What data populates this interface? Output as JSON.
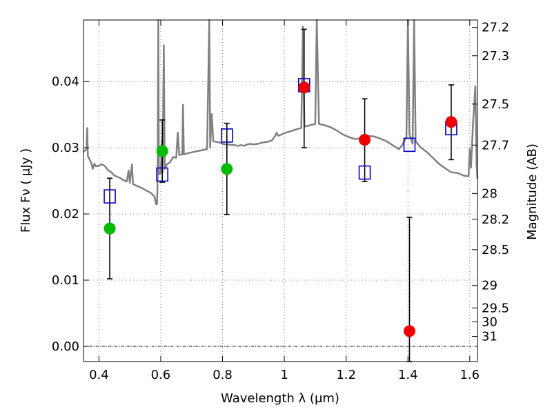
{
  "chart_data": {
    "type": "scatter",
    "title": "",
    "xlabel": "Wavelength  λ (μm)",
    "ylabel": "Flux  Fν  ( μJy )",
    "ylabel_right": "Magnitude (AB)",
    "xlim": [
      0.35,
      1.625
    ],
    "ylim": [
      -0.0023,
      0.0493
    ],
    "x_ticks": [
      0.4,
      0.6,
      0.8,
      1.0,
      1.2,
      1.4,
      1.6
    ],
    "x_tick_labels": [
      "0.4",
      "0.6",
      "0.8",
      "1",
      "1.2",
      "1.4",
      "1.6"
    ],
    "y_ticks": [
      0.0,
      0.01,
      0.02,
      0.03,
      0.04
    ],
    "y_tick_labels": [
      "0.00",
      "0.01",
      "0.02",
      "0.03",
      "0.04"
    ],
    "right_ticks": [
      {
        "label": "27.2",
        "flux": 0.0482
      },
      {
        "label": "27.3",
        "flux": 0.0439
      },
      {
        "label": "27.5",
        "flux": 0.0366
      },
      {
        "label": "27.7",
        "flux": 0.0304
      },
      {
        "label": "28",
        "flux": 0.0231
      },
      {
        "label": "28.2",
        "flux": 0.0192
      },
      {
        "label": "28.5",
        "flux": 0.0146
      },
      {
        "label": "29",
        "flux": 0.0092
      },
      {
        "label": "29.5",
        "flux": 0.0058
      },
      {
        "label": "30",
        "flux": 0.0037
      },
      {
        "label": "31",
        "flux": 0.0015
      }
    ],
    "grid": true,
    "zero_line": true,
    "colors": {
      "model_line": "#808080",
      "model_points": "#0000cc",
      "green_points": "#00bb00",
      "red_points": "#ee0000",
      "errorbar": "#000000",
      "grid": "#808080"
    },
    "series": [
      {
        "marker": "open-square",
        "points": [
          {
            "x": 0.435,
            "y": 0.0226
          },
          {
            "x": 0.605,
            "y": 0.0259
          },
          {
            "x": 0.814,
            "y": 0.0318
          },
          {
            "x": 1.064,
            "y": 0.0394
          },
          {
            "x": 1.26,
            "y": 0.0262
          },
          {
            "x": 1.405,
            "y": 0.0304
          },
          {
            "x": 1.54,
            "y": 0.0329
          }
        ]
      },
      {
        "marker": "filled-circle",
        "color": "green",
        "points": [
          {
            "x": 0.435,
            "y": 0.0178,
            "err_low": 0.0102,
            "err_high": 0.0254
          },
          {
            "x": 0.605,
            "y": 0.0295,
            "err_low": 0.0248,
            "err_high": 0.0342
          },
          {
            "x": 0.814,
            "y": 0.0268,
            "err_low": 0.0199,
            "err_high": 0.0337
          }
        ]
      },
      {
        "marker": "filled-circle",
        "color": "red",
        "points": [
          {
            "x": 1.064,
            "y": 0.0391,
            "err_low": 0.03,
            "err_high": 0.0479
          },
          {
            "x": 1.26,
            "y": 0.0312,
            "err_low": 0.0249,
            "err_high": 0.0374
          },
          {
            "x": 1.405,
            "y": 0.0023,
            "err_low": -0.0023,
            "err_high": 0.0195
          },
          {
            "x": 1.54,
            "y": 0.0339,
            "err_low": 0.0282,
            "err_high": 0.0395
          }
        ]
      },
      {
        "marker": "line",
        "points": [
          {
            "x": 0.35,
            "y": 0.0294
          },
          {
            "x": 0.36,
            "y": 0.0298
          },
          {
            "x": 0.362,
            "y": 0.033
          },
          {
            "x": 0.364,
            "y": 0.0288
          },
          {
            "x": 0.375,
            "y": 0.0277
          },
          {
            "x": 0.38,
            "y": 0.0268
          },
          {
            "x": 0.385,
            "y": 0.0276
          },
          {
            "x": 0.39,
            "y": 0.0272
          },
          {
            "x": 0.4,
            "y": 0.0273
          },
          {
            "x": 0.41,
            "y": 0.0275
          },
          {
            "x": 0.42,
            "y": 0.0272
          },
          {
            "x": 0.43,
            "y": 0.0266
          },
          {
            "x": 0.44,
            "y": 0.0263
          },
          {
            "x": 0.45,
            "y": 0.0258
          },
          {
            "x": 0.46,
            "y": 0.0256
          },
          {
            "x": 0.47,
            "y": 0.0254
          },
          {
            "x": 0.48,
            "y": 0.0251
          },
          {
            "x": 0.49,
            "y": 0.0249
          },
          {
            "x": 0.496,
            "y": 0.0266
          },
          {
            "x": 0.5,
            "y": 0.0247
          },
          {
            "x": 0.507,
            "y": 0.0275
          },
          {
            "x": 0.51,
            "y": 0.0245
          },
          {
            "x": 0.52,
            "y": 0.0243
          },
          {
            "x": 0.53,
            "y": 0.0241
          },
          {
            "x": 0.54,
            "y": 0.0239
          },
          {
            "x": 0.55,
            "y": 0.0236
          },
          {
            "x": 0.56,
            "y": 0.0234
          },
          {
            "x": 0.57,
            "y": 0.0231
          },
          {
            "x": 0.58,
            "y": 0.0226
          },
          {
            "x": 0.585,
            "y": 0.0215
          },
          {
            "x": 0.588,
            "y": 0.0215
          },
          {
            "x": 0.59,
            "y": 0.0255
          },
          {
            "x": 0.592,
            "y": 0.0493
          },
          {
            "x": 0.594,
            "y": 0.026
          },
          {
            "x": 0.6,
            "y": 0.0262
          },
          {
            "x": 0.604,
            "y": 0.0312
          },
          {
            "x": 0.606,
            "y": 0.0262
          },
          {
            "x": 0.61,
            "y": 0.0455
          },
          {
            "x": 0.613,
            "y": 0.0268
          },
          {
            "x": 0.62,
            "y": 0.0275
          },
          {
            "x": 0.63,
            "y": 0.0278
          },
          {
            "x": 0.64,
            "y": 0.0286
          },
          {
            "x": 0.65,
            "y": 0.0285
          },
          {
            "x": 0.655,
            "y": 0.0323
          },
          {
            "x": 0.66,
            "y": 0.0289
          },
          {
            "x": 0.67,
            "y": 0.029
          },
          {
            "x": 0.672,
            "y": 0.0365
          },
          {
            "x": 0.675,
            "y": 0.029
          },
          {
            "x": 0.69,
            "y": 0.0292
          },
          {
            "x": 0.71,
            "y": 0.0294
          },
          {
            "x": 0.73,
            "y": 0.0296
          },
          {
            "x": 0.75,
            "y": 0.0298
          },
          {
            "x": 0.757,
            "y": 0.0493
          },
          {
            "x": 0.76,
            "y": 0.03
          },
          {
            "x": 0.765,
            "y": 0.0351
          },
          {
            "x": 0.77,
            "y": 0.031
          },
          {
            "x": 0.78,
            "y": 0.0309
          },
          {
            "x": 0.79,
            "y": 0.0308
          },
          {
            "x": 0.8,
            "y": 0.0306
          },
          {
            "x": 0.81,
            "y": 0.0305
          },
          {
            "x": 0.82,
            "y": 0.0305
          },
          {
            "x": 0.83,
            "y": 0.0304
          },
          {
            "x": 0.84,
            "y": 0.0304
          },
          {
            "x": 0.85,
            "y": 0.0303
          },
          {
            "x": 0.86,
            "y": 0.0304
          },
          {
            "x": 0.87,
            "y": 0.0303
          },
          {
            "x": 0.88,
            "y": 0.0305
          },
          {
            "x": 0.89,
            "y": 0.0306
          },
          {
            "x": 0.9,
            "y": 0.0305
          },
          {
            "x": 0.915,
            "y": 0.0306
          },
          {
            "x": 0.93,
            "y": 0.0308
          },
          {
            "x": 0.945,
            "y": 0.0309
          },
          {
            "x": 0.96,
            "y": 0.0311
          },
          {
            "x": 0.97,
            "y": 0.0318
          },
          {
            "x": 0.975,
            "y": 0.0323
          },
          {
            "x": 0.98,
            "y": 0.0318
          },
          {
            "x": 0.99,
            "y": 0.032
          },
          {
            "x": 1.0,
            "y": 0.0322
          },
          {
            "x": 1.02,
            "y": 0.0325
          },
          {
            "x": 1.04,
            "y": 0.0328
          },
          {
            "x": 1.055,
            "y": 0.033
          },
          {
            "x": 1.06,
            "y": 0.0483
          },
          {
            "x": 1.065,
            "y": 0.0332
          },
          {
            "x": 1.075,
            "y": 0.0333
          },
          {
            "x": 1.09,
            "y": 0.0335
          },
          {
            "x": 1.1,
            "y": 0.0336
          },
          {
            "x": 1.105,
            "y": 0.0493
          },
          {
            "x": 1.112,
            "y": 0.0336
          },
          {
            "x": 1.13,
            "y": 0.0334
          },
          {
            "x": 1.15,
            "y": 0.0331
          },
          {
            "x": 1.17,
            "y": 0.0326
          },
          {
            "x": 1.19,
            "y": 0.032
          },
          {
            "x": 1.21,
            "y": 0.0316
          },
          {
            "x": 1.23,
            "y": 0.0313
          },
          {
            "x": 1.25,
            "y": 0.0315
          },
          {
            "x": 1.27,
            "y": 0.0318
          },
          {
            "x": 1.29,
            "y": 0.0317
          },
          {
            "x": 1.31,
            "y": 0.0314
          },
          {
            "x": 1.33,
            "y": 0.031
          },
          {
            "x": 1.35,
            "y": 0.0304
          },
          {
            "x": 1.37,
            "y": 0.0298
          },
          {
            "x": 1.38,
            "y": 0.0303
          },
          {
            "x": 1.395,
            "y": 0.0316
          },
          {
            "x": 1.4,
            "y": 0.0493
          },
          {
            "x": 1.405,
            "y": 0.032
          },
          {
            "x": 1.415,
            "y": 0.0306
          },
          {
            "x": 1.42,
            "y": 0.0493
          },
          {
            "x": 1.425,
            "y": 0.031
          },
          {
            "x": 1.44,
            "y": 0.0301
          },
          {
            "x": 1.46,
            "y": 0.0294
          },
          {
            "x": 1.48,
            "y": 0.0285
          },
          {
            "x": 1.5,
            "y": 0.0276
          },
          {
            "x": 1.52,
            "y": 0.0269
          },
          {
            "x": 1.54,
            "y": 0.0263
          },
          {
            "x": 1.56,
            "y": 0.0262
          },
          {
            "x": 1.58,
            "y": 0.0258
          },
          {
            "x": 1.59,
            "y": 0.0257
          },
          {
            "x": 1.596,
            "y": 0.0257
          },
          {
            "x": 1.6,
            "y": 0.0298
          },
          {
            "x": 1.604,
            "y": 0.027
          },
          {
            "x": 1.61,
            "y": 0.0332
          },
          {
            "x": 1.618,
            "y": 0.0393
          },
          {
            "x": 1.622,
            "y": 0.0275
          },
          {
            "x": 1.625,
            "y": 0.0253
          }
        ]
      }
    ]
  }
}
